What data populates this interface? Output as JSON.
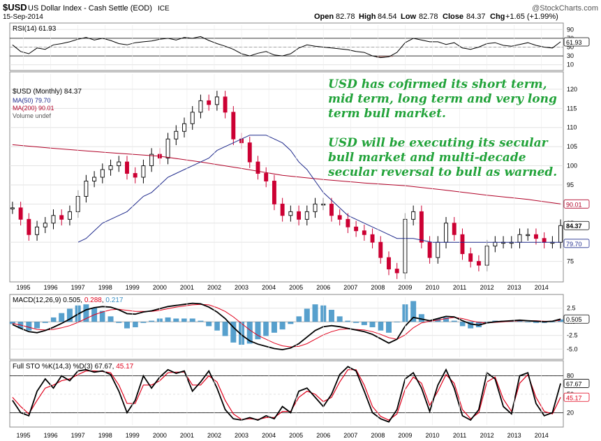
{
  "header": {
    "symbol": "$USD",
    "name": "US Dollar Index - Cash Settle (EOD)",
    "exchange": "ICE",
    "date": "15-Sep-2014",
    "watermark": "@StockCharts.com",
    "ohlc": {
      "open_label": "Open",
      "open": "82.78",
      "high_label": "High",
      "high": "84.54",
      "low_label": "Low",
      "low": "82.78",
      "close_label": "Close",
      "close": "84.37",
      "chg_label": "Chg",
      "chg": "+1.65 (+1.99%)"
    }
  },
  "annotation": {
    "line1": "USD has cofirmed its short term,",
    "line2": "mid term, long term and very long",
    "line3": "term bull market.",
    "line4": "USD will be executing its secular",
    "line5": "bull market and multi-decade",
    "line6": "secular reversal to bull as warned."
  },
  "colors": {
    "up": "#000000",
    "down": "#cc0033",
    "ma50": "#1f2a8c",
    "ma200": "#b00026",
    "accent": "#22a33a",
    "macdHist": "#3a8fc4",
    "stoD": "#e0001b"
  },
  "chart_data": [
    {
      "type": "line",
      "id": "rsi",
      "title": "RSI(14) 61.93",
      "ylim": [
        0,
        100
      ],
      "ticks": [
        "90",
        "70",
        "50",
        "30",
        "10"
      ],
      "tick_values": [
        90,
        70,
        50,
        30,
        10
      ],
      "overbought": 70,
      "oversold": 30,
      "midline": 50,
      "current_label": "61.93",
      "current": 61.93,
      "x": [
        1994.6,
        1994.9,
        1995.2,
        1995.5,
        1995.8,
        1996.1,
        1996.4,
        1996.7,
        1997.0,
        1997.3,
        1997.6,
        1997.9,
        1998.2,
        1998.5,
        1998.8,
        1999.1,
        1999.4,
        1999.7,
        2000.0,
        2000.3,
        2000.6,
        2000.9,
        2001.2,
        2001.5,
        2001.8,
        2002.1,
        2002.4,
        2002.7,
        2003.0,
        2003.3,
        2003.6,
        2003.9,
        2004.2,
        2004.5,
        2004.8,
        2005.1,
        2005.4,
        2005.7,
        2006.0,
        2006.3,
        2006.6,
        2006.9,
        2007.2,
        2007.5,
        2007.8,
        2008.1,
        2008.4,
        2008.7,
        2009.0,
        2009.3,
        2009.6,
        2009.9,
        2010.2,
        2010.5,
        2010.8,
        2011.1,
        2011.4,
        2011.7,
        2012.0,
        2012.3,
        2012.6,
        2012.9,
        2013.2,
        2013.5,
        2013.8,
        2014.1,
        2014.4,
        2014.7
      ],
      "values": [
        55,
        40,
        35,
        48,
        45,
        55,
        58,
        62,
        68,
        72,
        66,
        70,
        65,
        58,
        55,
        60,
        62,
        64,
        68,
        70,
        66,
        72,
        70,
        74,
        65,
        58,
        52,
        45,
        35,
        30,
        36,
        40,
        32,
        30,
        35,
        48,
        55,
        52,
        50,
        48,
        46,
        44,
        40,
        38,
        30,
        26,
        28,
        38,
        60,
        70,
        66,
        62,
        62,
        56,
        60,
        48,
        45,
        50,
        58,
        60,
        54,
        52,
        56,
        60,
        54,
        50,
        48,
        62
      ]
    },
    {
      "type": "line",
      "id": "price",
      "title": "$USD (Monthly) 84.37",
      "legend": [
        "$USD (Monthly) 84.37",
        "MA(50) 79.70",
        "MA(200) 90.01",
        "Volume undef"
      ],
      "ylim": [
        70,
        124
      ],
      "ticks": [
        "120",
        "115",
        "110",
        "105",
        "100",
        "95",
        "90",
        "85",
        "80",
        "75"
      ],
      "tick_values": [
        120,
        115,
        110,
        105,
        100,
        95,
        90,
        85,
        80,
        75
      ],
      "last_label": "84.37",
      "last": 84.37,
      "ma50_label": "79.70",
      "ma50_last": 79.7,
      "ma200_label": "90.01",
      "ma200_last": 90.01,
      "x": [
        1994.6,
        1994.9,
        1995.2,
        1995.5,
        1995.8,
        1996.1,
        1996.4,
        1996.7,
        1997.0,
        1997.3,
        1997.6,
        1997.9,
        1998.2,
        1998.5,
        1998.8,
        1999.1,
        1999.4,
        1999.7,
        2000.0,
        2000.3,
        2000.6,
        2000.9,
        2001.2,
        2001.5,
        2001.8,
        2002.1,
        2002.4,
        2002.7,
        2003.0,
        2003.3,
        2003.6,
        2003.9,
        2004.2,
        2004.5,
        2004.8,
        2005.1,
        2005.4,
        2005.7,
        2006.0,
        2006.3,
        2006.6,
        2006.9,
        2007.2,
        2007.5,
        2007.8,
        2008.1,
        2008.4,
        2008.7,
        2009.0,
        2009.3,
        2009.6,
        2009.9,
        2010.2,
        2010.5,
        2010.8,
        2011.1,
        2011.4,
        2011.7,
        2012.0,
        2012.3,
        2012.6,
        2012.9,
        2013.2,
        2013.5,
        2013.8,
        2014.1,
        2014.4,
        2014.7
      ],
      "values": [
        89,
        86,
        82,
        84,
        85,
        87,
        86,
        88,
        92,
        96,
        97,
        99,
        100,
        101,
        98,
        97,
        100,
        103,
        102,
        107,
        109,
        111,
        114,
        117,
        116,
        118,
        114,
        107,
        106,
        101,
        98,
        96,
        90,
        87,
        88,
        86,
        88,
        90,
        90,
        87,
        86,
        84,
        83,
        82,
        80,
        76,
        73,
        72,
        86,
        88,
        80,
        76,
        80,
        85,
        82,
        77,
        75,
        74,
        79,
        80,
        80,
        80,
        82,
        82,
        81,
        80,
        80,
        84.37
      ],
      "ma50_values": [
        80,
        81,
        83,
        85,
        86,
        87,
        88,
        90,
        92,
        93,
        95,
        97,
        98,
        99,
        100,
        101,
        102,
        104,
        105,
        106,
        107,
        108,
        108,
        108,
        107,
        106,
        104,
        101,
        99,
        96,
        93,
        91,
        89,
        87,
        86,
        85,
        84,
        83,
        82,
        81,
        81,
        81,
        80,
        80,
        80,
        80,
        80,
        80
      ],
      "ma50_x": [
        1997.0,
        1997.3,
        1997.6,
        1997.9,
        1998.2,
        1998.5,
        1998.8,
        1999.1,
        1999.4,
        1999.7,
        2000.0,
        2000.3,
        2000.6,
        2000.9,
        2001.2,
        2001.5,
        2001.8,
        2002.1,
        2002.4,
        2002.7,
        2003.0,
        2003.3,
        2003.6,
        2003.9,
        2004.2,
        2004.5,
        2004.8,
        2005.1,
        2005.4,
        2005.7,
        2006.0,
        2006.3,
        2006.6,
        2006.9,
        2007.2,
        2007.5,
        2007.8,
        2008.1,
        2008.4,
        2008.7,
        2009.0,
        2009.3,
        2010.0,
        2011.0,
        2012.0,
        2013.0,
        2014.0,
        2014.7
      ],
      "ma200_x": [
        1994.6,
        1996.0,
        1998.0,
        2000.0,
        2001.5,
        2003.0,
        2004.5,
        2006.0,
        2007.5,
        2009.0,
        2010.5,
        2012.0,
        2013.5,
        2014.7
      ],
      "ma200_values": [
        105.5,
        104.6,
        103.5,
        102.5,
        101.0,
        99.3,
        97.5,
        96.4,
        95.5,
        94.8,
        93.6,
        92.3,
        91.2,
        90.01
      ],
      "xlabels": [
        "1995",
        "1996",
        "1997",
        "1998",
        "1999",
        "2000",
        "2001",
        "2002",
        "2003",
        "2004",
        "2005",
        "2006",
        "2007",
        "2008",
        "2009",
        "2010",
        "2011",
        "2012",
        "2013",
        "2014"
      ],
      "xlabel_values": [
        1995,
        1996,
        1997,
        1998,
        1999,
        2000,
        2001,
        2002,
        2003,
        2004,
        2005,
        2006,
        2007,
        2008,
        2009,
        2010,
        2011,
        2012,
        2013,
        2014
      ]
    },
    {
      "type": "line",
      "id": "macd",
      "title_prefix": "MACD(12,26,9) 0.505, ",
      "title_signal": "0.288",
      "title_sep": ", ",
      "title_hist": "0.217",
      "ylim": [
        -6.5,
        4.5
      ],
      "ticks": [
        "2.5",
        "0.0",
        "-2.5",
        "-5.0"
      ],
      "tick_values": [
        2.5,
        0,
        -2.5,
        -5
      ],
      "current_label": "0.505",
      "current": 0.505,
      "x": [
        1994.6,
        1994.9,
        1995.2,
        1995.5,
        1995.8,
        1996.1,
        1996.4,
        1996.7,
        1997.0,
        1997.3,
        1997.6,
        1997.9,
        1998.2,
        1998.5,
        1998.8,
        1999.1,
        1999.4,
        1999.7,
        2000.0,
        2000.3,
        2000.6,
        2000.9,
        2001.2,
        2001.5,
        2001.8,
        2002.1,
        2002.4,
        2002.7,
        2003.0,
        2003.3,
        2003.6,
        2003.9,
        2004.2,
        2004.5,
        2004.8,
        2005.1,
        2005.4,
        2005.7,
        2006.0,
        2006.3,
        2006.6,
        2006.9,
        2007.2,
        2007.5,
        2007.8,
        2008.1,
        2008.4,
        2008.7,
        2009.0,
        2009.3,
        2009.6,
        2009.9,
        2010.2,
        2010.5,
        2010.8,
        2011.1,
        2011.4,
        2011.7,
        2012.0,
        2012.3,
        2012.6,
        2012.9,
        2013.2,
        2013.5,
        2013.8,
        2014.1,
        2014.4,
        2014.7
      ],
      "values": [
        -0.5,
        -1.2,
        -1.8,
        -2.0,
        -1.6,
        -1.0,
        -0.3,
        0.5,
        1.4,
        2.2,
        2.6,
        2.8,
        2.7,
        2.2,
        1.5,
        1.4,
        1.8,
        2.0,
        2.4,
        2.8,
        3.0,
        3.2,
        3.4,
        3.3,
        2.7,
        1.8,
        0.6,
        -1.0,
        -2.4,
        -3.5,
        -4.1,
        -4.5,
        -4.9,
        -5.1,
        -4.8,
        -4.0,
        -2.8,
        -1.6,
        -0.9,
        -0.7,
        -0.9,
        -1.2,
        -1.5,
        -1.8,
        -2.3,
        -3.1,
        -3.9,
        -3.2,
        -0.8,
        0.8,
        0.5,
        0.2,
        0.6,
        1.0,
        0.9,
        0.2,
        -0.4,
        -0.6,
        -0.2,
        0.0,
        0.1,
        0.2,
        0.3,
        0.2,
        0.1,
        0.0,
        0.1,
        0.505
      ],
      "signal": [
        -0.3,
        -0.6,
        -1.0,
        -1.4,
        -1.5,
        -1.4,
        -1.1,
        -0.7,
        -0.1,
        0.6,
        1.3,
        1.8,
        2.2,
        2.3,
        2.1,
        1.9,
        1.9,
        1.9,
        2.1,
        2.4,
        2.7,
        2.9,
        3.1,
        3.2,
        3.1,
        2.6,
        1.9,
        0.9,
        -0.3,
        -1.5,
        -2.5,
        -3.2,
        -3.9,
        -4.4,
        -4.6,
        -4.5,
        -4.0,
        -3.2,
        -2.4,
        -1.8,
        -1.4,
        -1.3,
        -1.4,
        -1.5,
        -1.8,
        -2.3,
        -2.9,
        -3.2,
        -2.4,
        -1.1,
        -0.2,
        0.1,
        0.3,
        0.6,
        0.8,
        0.6,
        0.2,
        -0.1,
        -0.2,
        -0.1,
        0.0,
        0.1,
        0.2,
        0.2,
        0.2,
        0.1,
        0.1,
        0.288
      ]
    },
    {
      "type": "line",
      "id": "sto",
      "title_prefix": "Full STO %K(14,3) %D(3) 67.67, ",
      "title_d": "45.17",
      "ylim": [
        0,
        100
      ],
      "ticks": [
        "80",
        "50",
        "20"
      ],
      "tick_values": [
        80,
        50,
        20
      ],
      "k_label": "67.67",
      "k_current": 67.67,
      "d_label": "45.17",
      "d_current": 45.17,
      "x": [
        1994.6,
        1994.9,
        1995.2,
        1995.5,
        1995.8,
        1996.1,
        1996.4,
        1996.7,
        1997.0,
        1997.3,
        1997.6,
        1997.9,
        1998.2,
        1998.5,
        1998.8,
        1999.1,
        1999.4,
        1999.7,
        2000.0,
        2000.3,
        2000.6,
        2000.9,
        2001.2,
        2001.5,
        2001.8,
        2002.1,
        2002.4,
        2002.7,
        2003.0,
        2003.3,
        2003.6,
        2003.9,
        2004.2,
        2004.5,
        2004.8,
        2005.1,
        2005.4,
        2005.7,
        2006.0,
        2006.3,
        2006.6,
        2006.9,
        2007.2,
        2007.5,
        2007.8,
        2008.1,
        2008.4,
        2008.7,
        2009.0,
        2009.3,
        2009.6,
        2009.9,
        2010.2,
        2010.5,
        2010.8,
        2011.1,
        2011.4,
        2011.7,
        2012.0,
        2012.3,
        2012.6,
        2012.9,
        2013.2,
        2013.5,
        2013.8,
        2014.1,
        2014.4,
        2014.7
      ],
      "values": [
        40,
        20,
        15,
        55,
        75,
        60,
        80,
        72,
        88,
        90,
        86,
        88,
        82,
        55,
        20,
        40,
        80,
        60,
        78,
        90,
        84,
        88,
        55,
        70,
        88,
        60,
        25,
        10,
        8,
        12,
        8,
        15,
        10,
        30,
        20,
        55,
        60,
        45,
        30,
        50,
        82,
        95,
        88,
        55,
        20,
        10,
        5,
        25,
        75,
        85,
        60,
        22,
        65,
        90,
        60,
        15,
        8,
        25,
        85,
        75,
        30,
        18,
        80,
        85,
        35,
        15,
        20,
        67.67
      ],
      "d_values": [
        45,
        30,
        18,
        40,
        60,
        65,
        72,
        75,
        82,
        88,
        88,
        87,
        85,
        65,
        35,
        35,
        65,
        65,
        72,
        85,
        86,
        86,
        65,
        65,
        80,
        70,
        40,
        18,
        9,
        10,
        9,
        12,
        12,
        22,
        22,
        45,
        55,
        50,
        38,
        45,
        70,
        90,
        90,
        65,
        30,
        14,
        8,
        18,
        58,
        78,
        68,
        32,
        55,
        82,
        68,
        25,
        10,
        20,
        70,
        78,
        42,
        22,
        68,
        82,
        45,
        22,
        18,
        45.17
      ]
    }
  ]
}
